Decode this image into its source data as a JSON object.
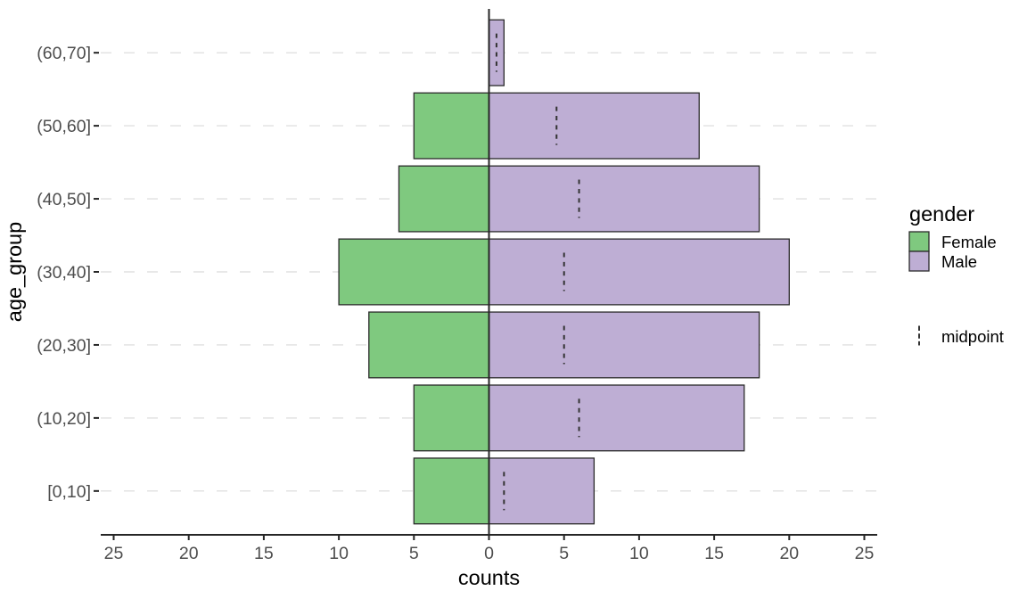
{
  "chart_data": {
    "type": "bar",
    "subtype": "population-pyramid",
    "orientation": "horizontal",
    "title": "",
    "xlabel": "counts",
    "ylabel": "age_group",
    "xlim": [
      -25.9,
      25.9
    ],
    "x_ticks": [
      {
        "value": -25,
        "label": "25"
      },
      {
        "value": -20,
        "label": "20"
      },
      {
        "value": -15,
        "label": "15"
      },
      {
        "value": -10,
        "label": "10"
      },
      {
        "value": -5,
        "label": "5"
      },
      {
        "value": 0,
        "label": "0"
      },
      {
        "value": 5,
        "label": "5"
      },
      {
        "value": 10,
        "label": "10"
      },
      {
        "value": 15,
        "label": "15"
      },
      {
        "value": 20,
        "label": "20"
      },
      {
        "value": 25,
        "label": "25"
      }
    ],
    "rows": [
      {
        "age": "(60,70]",
        "female": 0,
        "male": 1,
        "midpoint": 0.5
      },
      {
        "age": "(50,60]",
        "female": 5,
        "male": 14,
        "midpoint": 4.5
      },
      {
        "age": "(40,50]",
        "female": 6,
        "male": 18,
        "midpoint": 6
      },
      {
        "age": "(30,40]",
        "female": 10,
        "male": 20,
        "midpoint": 5
      },
      {
        "age": "(20,30]",
        "female": 8,
        "male": 18,
        "midpoint": 5
      },
      {
        "age": "(10,20]",
        "female": 5,
        "male": 17,
        "midpoint": 6
      },
      {
        "age": "[0,10]",
        "female": 5,
        "male": 7,
        "midpoint": 1
      }
    ],
    "rows_order": "top_to_bottom",
    "series": [
      {
        "name": "Female",
        "color": "#7FC97F"
      },
      {
        "name": "Male",
        "color": "#BEAED4"
      }
    ],
    "legend": {
      "title": "gender",
      "entries": [
        "Female",
        "Male"
      ],
      "midpoint_label": "midpoint",
      "position": "right"
    },
    "grid": {
      "horizontal": "dashed",
      "vertical": "none"
    },
    "style_colors": {
      "axis_line": "#262626",
      "tick_label": "#4D4D4D",
      "gridline": "#E0E0E0",
      "bar_border": "#2B2B2B",
      "midpoint_line": "#333333"
    }
  }
}
